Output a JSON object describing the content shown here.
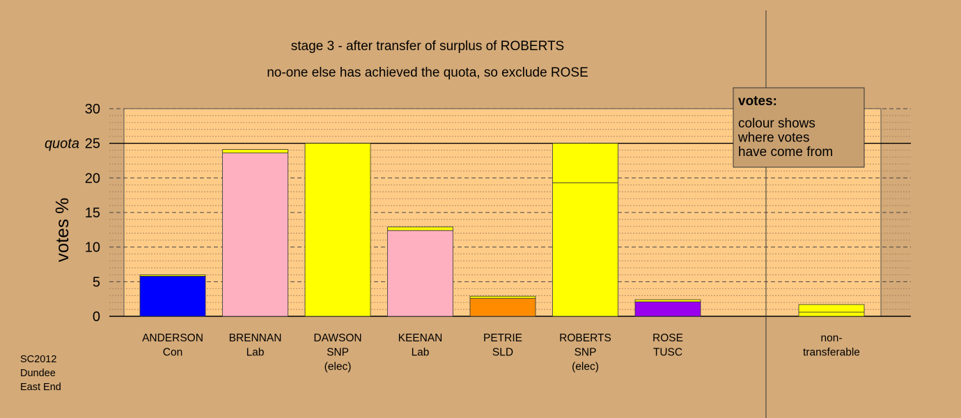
{
  "chart_data": {
    "type": "bar",
    "title": "stage 3 - after transfer of surplus of ROBERTS",
    "subtitle": "no-one else has achieved the quota, so exclude ROSE",
    "ylabel": "votes %",
    "ylim": [
      0,
      30
    ],
    "yticks": [
      0,
      5,
      10,
      15,
      20,
      25,
      30
    ],
    "quota": {
      "value": 25,
      "label": "quota"
    },
    "grid": true,
    "categories": [
      {
        "id": "anderson",
        "lines": [
          "ANDERSON",
          "Con"
        ],
        "color": "#0000ff",
        "segments": [
          {
            "value": 5.8,
            "color": "#0000ff"
          },
          {
            "value": 0.2,
            "color": "#ffff00"
          }
        ]
      },
      {
        "id": "brennan",
        "lines": [
          "BRENNAN",
          "Lab"
        ],
        "color": "#ffb0c0",
        "segments": [
          {
            "value": 23.6,
            "color": "#ffb0c0"
          },
          {
            "value": 0.5,
            "color": "#ffff00"
          }
        ]
      },
      {
        "id": "dawson",
        "lines": [
          "DAWSON",
          "SNP",
          "(elec)"
        ],
        "color": "#ffff00",
        "segments": [
          {
            "value": 25.0,
            "color": "#ffff00"
          }
        ]
      },
      {
        "id": "keenan",
        "lines": [
          "KEENAN",
          "Lab"
        ],
        "color": "#ffb0c0",
        "segments": [
          {
            "value": 12.4,
            "color": "#ffb0c0"
          },
          {
            "value": 0.5,
            "color": "#ffff00"
          }
        ]
      },
      {
        "id": "petrie",
        "lines": [
          "PETRIE",
          "SLD"
        ],
        "color": "#ff8c00",
        "segments": [
          {
            "value": 2.6,
            "color": "#ff8c00"
          },
          {
            "value": 0.3,
            "color": "#ffff00"
          }
        ]
      },
      {
        "id": "roberts",
        "lines": [
          "ROBERTS",
          "SNP",
          "(elec)"
        ],
        "color": "#ffff00",
        "segments": [
          {
            "value": 19.3,
            "color": "#ffff00"
          },
          {
            "value": 5.7,
            "color": "#ffff00"
          }
        ]
      },
      {
        "id": "rose",
        "lines": [
          "ROSE",
          "TUSC"
        ],
        "color": "#9900ee",
        "segments": [
          {
            "value": 2.1,
            "color": "#9900ee"
          },
          {
            "value": 0.3,
            "color": "#ffff00"
          }
        ]
      }
    ],
    "nontransferable": {
      "lines": [
        "non-",
        "transferable"
      ],
      "segments": [
        {
          "value": 0.6,
          "color": "#ffff00"
        },
        {
          "value": 1.1,
          "color": "#ffff00"
        }
      ]
    }
  },
  "legend": {
    "title": "votes:",
    "lines": [
      "colour shows",
      "where votes",
      "have come from"
    ]
  },
  "footer": {
    "lines": [
      "SC2012",
      "Dundee",
      "East End"
    ]
  },
  "colors": {
    "background": "#d4aa78",
    "plot_background": "#ffcc88",
    "legend_background": "#c8a070"
  }
}
